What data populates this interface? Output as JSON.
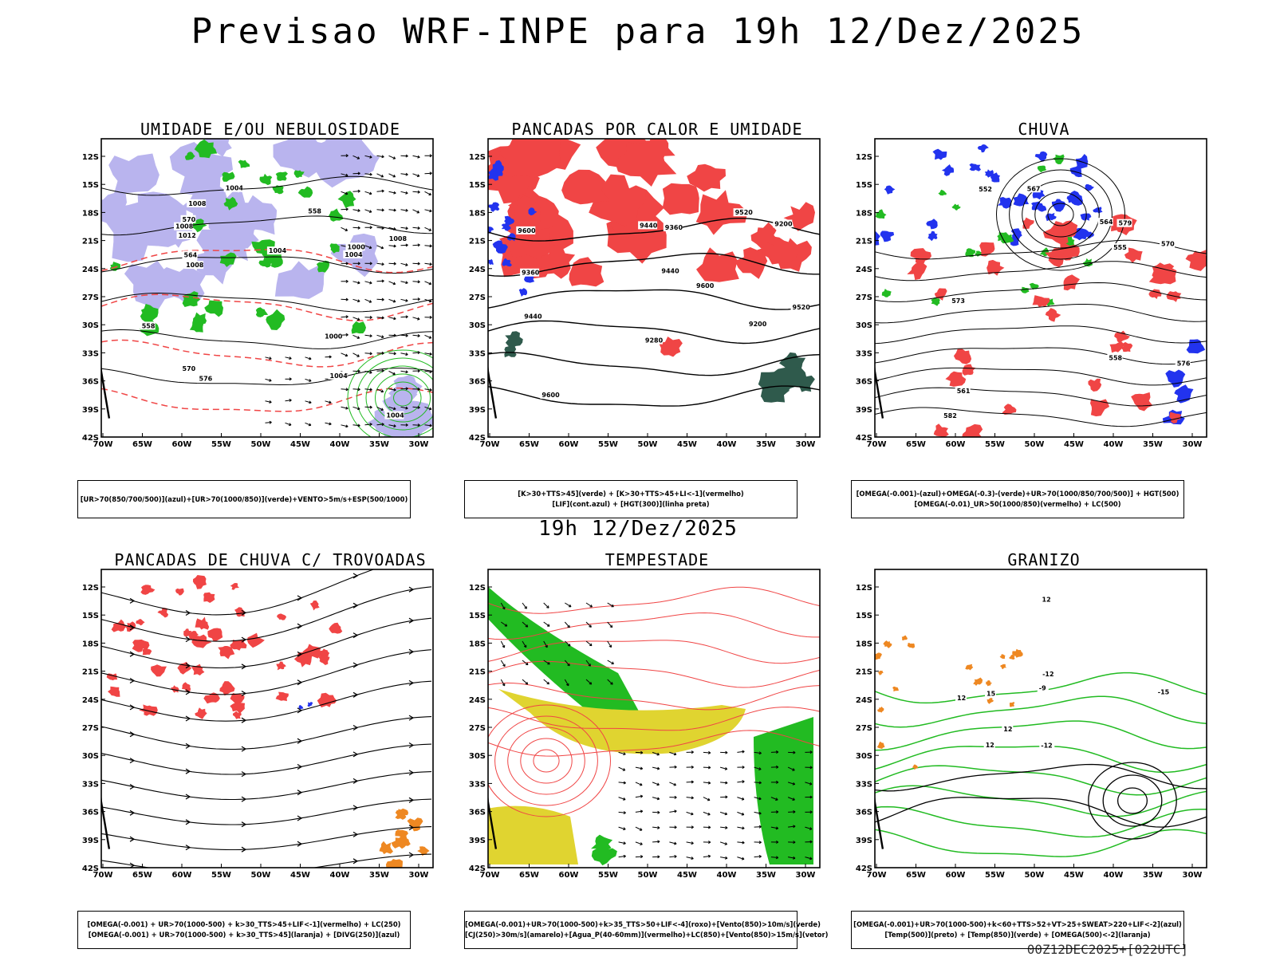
{
  "header": {
    "title": "Previsao WRF-INPE  para 19h 12/Dez/2025",
    "mid_time": "19h 12/Dez/2025",
    "footer": "00Z12DEC2025+[022UTC]"
  },
  "axes": {
    "lat_ticks": [
      "12S",
      "15S",
      "18S",
      "21S",
      "24S",
      "27S",
      "30S",
      "33S",
      "36S",
      "39S",
      "42S"
    ],
    "lon_ticks": [
      "70W",
      "65W",
      "60W",
      "55W",
      "50W",
      "45W",
      "40W",
      "35W",
      "30W"
    ]
  },
  "colors": {
    "umidade_azul": "#b9b4ee",
    "verde": "#22bb22",
    "vermelho": "#f04545",
    "laranja": "#ee8822",
    "azul": "#2233ee",
    "amarelo": "#e0d430",
    "verde_escuro": "#2f5a4c",
    "preto": "#000000"
  },
  "panels": [
    {
      "title": "UMIDADE E/OU NEBULOSIDADE",
      "legend": [
        "[UR>70(850/700/500)](azul)+[UR>70(1000/850)](verde)+VENTO>5m/s+ESP(500/1000)"
      ],
      "contour_labels": [
        "1004",
        "1004",
        "1008",
        "1008",
        "1004",
        "1004",
        "1012",
        "1008",
        "1000",
        "1004",
        "1008",
        "1000",
        "570",
        "576",
        "570",
        "564",
        "558",
        "558"
      ]
    },
    {
      "title": "PANCADAS POR CALOR E UMIDADE",
      "legend": [
        "[K>30+TTS>45](verde) + [K>30+TTS>45+LI<-1](vermelho)",
        "[LIF](cont.azul) + [HGT(300)](linha preta)"
      ],
      "contour_labels": [
        "9600",
        "9600",
        "9600",
        "9520",
        "9440",
        "9440",
        "9520",
        "9440",
        "9360",
        "9360",
        "9280",
        "9200",
        "9200"
      ]
    },
    {
      "title": "CHUVA",
      "legend": [
        "[OMEGA(-0.001)-(azul)+OMEGA(-0.3)-(verde)+UR>70(1000/850/700/500)] + HGT(500)",
        "[OMEGA(-0.01)_UR>50(1000/850)(vermelho) + LC(500)"
      ],
      "contour_labels": [
        "582",
        "579",
        "576",
        "573",
        "570",
        "567",
        "564",
        "561",
        "558",
        "555",
        "552"
      ]
    },
    {
      "title": "PANCADAS DE CHUVA C/ TROVOADAS",
      "legend": [
        "[OMEGA(-0.001) + UR>70(1000-500) + k>30_TTS>45+LIF<-1](vermelho) + LC(250)",
        "[OMEGA(-0.001) + UR>70(1000-500) + k>30_TTS>45](laranja) + [DIVG(250)](azul)"
      ],
      "contour_labels": []
    },
    {
      "title": "TEMPESTADE",
      "legend": [
        "[OMEGA(-0.001)+UR>70(1000-500)+k>35_TTS>50+LIF<-4](roxo)+[Vento(850)>10m/s](verde)",
        "[CJ(250)>30m/s](amarelo)+[Agua_P(40-60mm)](vermelho)+LC(850)+[Vento(850)>15m/s](vetor)"
      ],
      "contour_labels": []
    },
    {
      "title": "GRANIZO",
      "legend": [
        "[OMEGA(-0.001)+UR>70(1000-500)+k<60+TTS>52+VT>25+SWEAT>220+LIF<-2](azul)",
        "[Temp(500)](preto) + [Temp(850)](verde) + [OMEGA(500)<-2](laranja)"
      ],
      "contour_labels": [
        "12",
        "-15",
        "-12",
        "-12",
        "-9",
        "12",
        "15",
        "12",
        "12"
      ]
    }
  ]
}
